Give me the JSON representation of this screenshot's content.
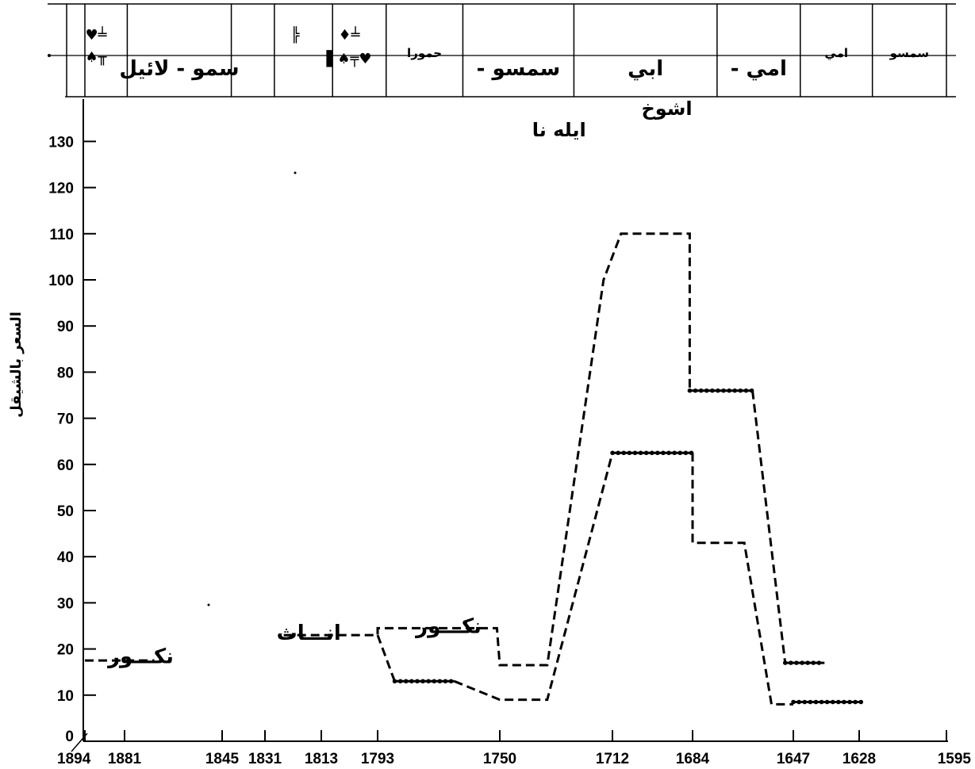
{
  "chart_data": {
    "type": "line",
    "ylabel": "السعر بالشيقل",
    "xlim": [
      1894,
      1595
    ],
    "ylim": [
      0,
      135
    ],
    "x_ticks": [
      "1894",
      "1881",
      "1845",
      "1831",
      "1813",
      "1793",
      "1750",
      "1712",
      "1684",
      "1647",
      "1628",
      "1595"
    ],
    "y_ticks": [
      "0",
      "10",
      "20",
      "30",
      "40",
      "50",
      "60",
      "70",
      "80",
      "90",
      "100",
      "110",
      "120",
      "130"
    ],
    "grid": false,
    "header_cells": [
      {
        "label": "سمسو",
        "x0": 1595,
        "x1": 1623
      },
      {
        "label": "امي",
        "x0": 1623,
        "x1": 1645
      },
      {
        "label": "امي -",
        "x0": 1645,
        "x1": 1675
      },
      {
        "label": "ابي",
        "x0": 1675,
        "x1": 1725
      },
      {
        "label": "سمسو -",
        "x0": 1725,
        "x1": 1763
      },
      {
        "label": "حمورا",
        "x0": 1763,
        "x1": 1790
      },
      {
        "label": "",
        "x0": 1790,
        "x1": 1809
      },
      {
        "label": "",
        "x0": 1809,
        "x1": 1828
      },
      {
        "label": "",
        "x0": 1828,
        "x1": 1842
      },
      {
        "label": "سمو - لائيل",
        "x0": 1842,
        "x1": 1880
      },
      {
        "label": "",
        "x0": 1880,
        "x1": 1894
      }
    ],
    "header_sublabels": [
      {
        "text": "اشوخ",
        "x": 1693
      },
      {
        "text": "ايله نا",
        "x": 1730
      }
    ],
    "series": [
      {
        "style": "dashed",
        "segments": [
          {
            "style": "dashed",
            "points": [
              [
                1894,
                17.5
              ],
              [
                1870,
                17.5
              ]
            ]
          },
          {
            "style": "dashed",
            "points": [
              [
                1825,
                23
              ],
              [
                1793,
                23
              ],
              [
                1793,
                24.5
              ],
              [
                1751,
                24.5
              ],
              [
                1750,
                16.5
              ],
              [
                1734,
                16.5
              ],
              [
                1715,
                100
              ],
              [
                1709,
                110
              ],
              [
                1685,
                110
              ],
              [
                1685,
                76
              ]
            ]
          },
          {
            "style": "dotted",
            "points": [
              [
                1685,
                76
              ],
              [
                1662,
                76
              ]
            ]
          },
          {
            "style": "dashed",
            "points": [
              [
                1662,
                76
              ],
              [
                1650,
                17
              ]
            ]
          },
          {
            "style": "dotted",
            "points": [
              [
                1650,
                17
              ],
              [
                1638,
                17
              ]
            ]
          }
        ]
      },
      {
        "style": "solid",
        "segments": [
          {
            "style": "dashed",
            "points": [
              [
                1793,
                23
              ],
              [
                1787,
                13
              ]
            ]
          },
          {
            "style": "dotted",
            "points": [
              [
                1787,
                13
              ],
              [
                1766,
                13
              ]
            ]
          },
          {
            "style": "dashed",
            "points": [
              [
                1766,
                13
              ],
              [
                1750,
                9
              ],
              [
                1734,
                9
              ],
              [
                1712,
                62.5
              ]
            ]
          },
          {
            "style": "dotted",
            "points": [
              [
                1712,
                62.5
              ],
              [
                1684,
                62.5
              ]
            ]
          },
          {
            "style": "dashed",
            "points": [
              [
                1684,
                62.5
              ],
              [
                1684,
                43
              ],
              [
                1665,
                43
              ],
              [
                1655,
                8
              ],
              [
                1647,
                8
              ]
            ]
          },
          {
            "style": "dotted",
            "points": [
              [
                1647,
                8.5
              ],
              [
                1627,
                8.5
              ]
            ]
          }
        ]
      }
    ],
    "annotations": [
      {
        "text": "نكـــور",
        "x": 1875,
        "y": 18.5
      },
      {
        "text": "انـــاث",
        "x": 1817,
        "y": 23.5
      },
      {
        "text": "نكـــور",
        "x": 1768,
        "y": 25
      }
    ]
  }
}
